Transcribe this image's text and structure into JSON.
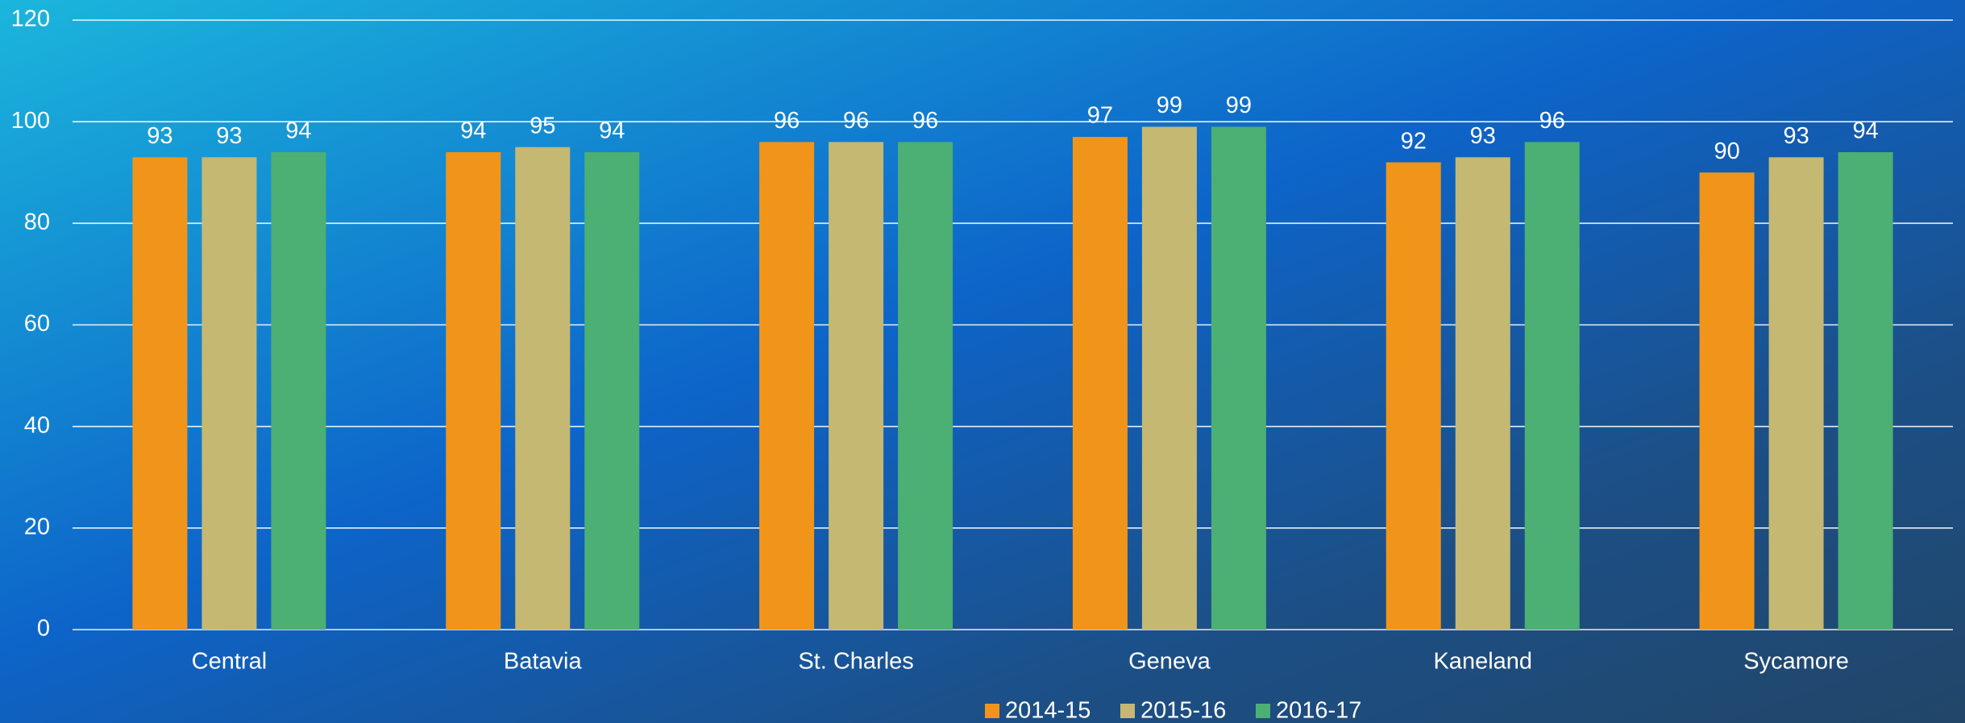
{
  "chart_data": {
    "type": "bar",
    "categories": [
      "Central",
      "Batavia",
      "St. Charles",
      "Geneva",
      "Kaneland",
      "Sycamore"
    ],
    "series": [
      {
        "name": "2014-15",
        "color": "#f0951a",
        "values": [
          93,
          94,
          96,
          97,
          92,
          90
        ]
      },
      {
        "name": "2015-16",
        "color": "#c4b872",
        "values": [
          93,
          95,
          96,
          99,
          93,
          93
        ]
      },
      {
        "name": "2016-17",
        "color": "#4caf74",
        "values": [
          94,
          94,
          96,
          99,
          96,
          94
        ]
      }
    ],
    "ylim": [
      0,
      120
    ],
    "yticks": [
      0,
      20,
      40,
      60,
      80,
      100,
      120
    ],
    "grid": true,
    "legend": "bottom"
  }
}
